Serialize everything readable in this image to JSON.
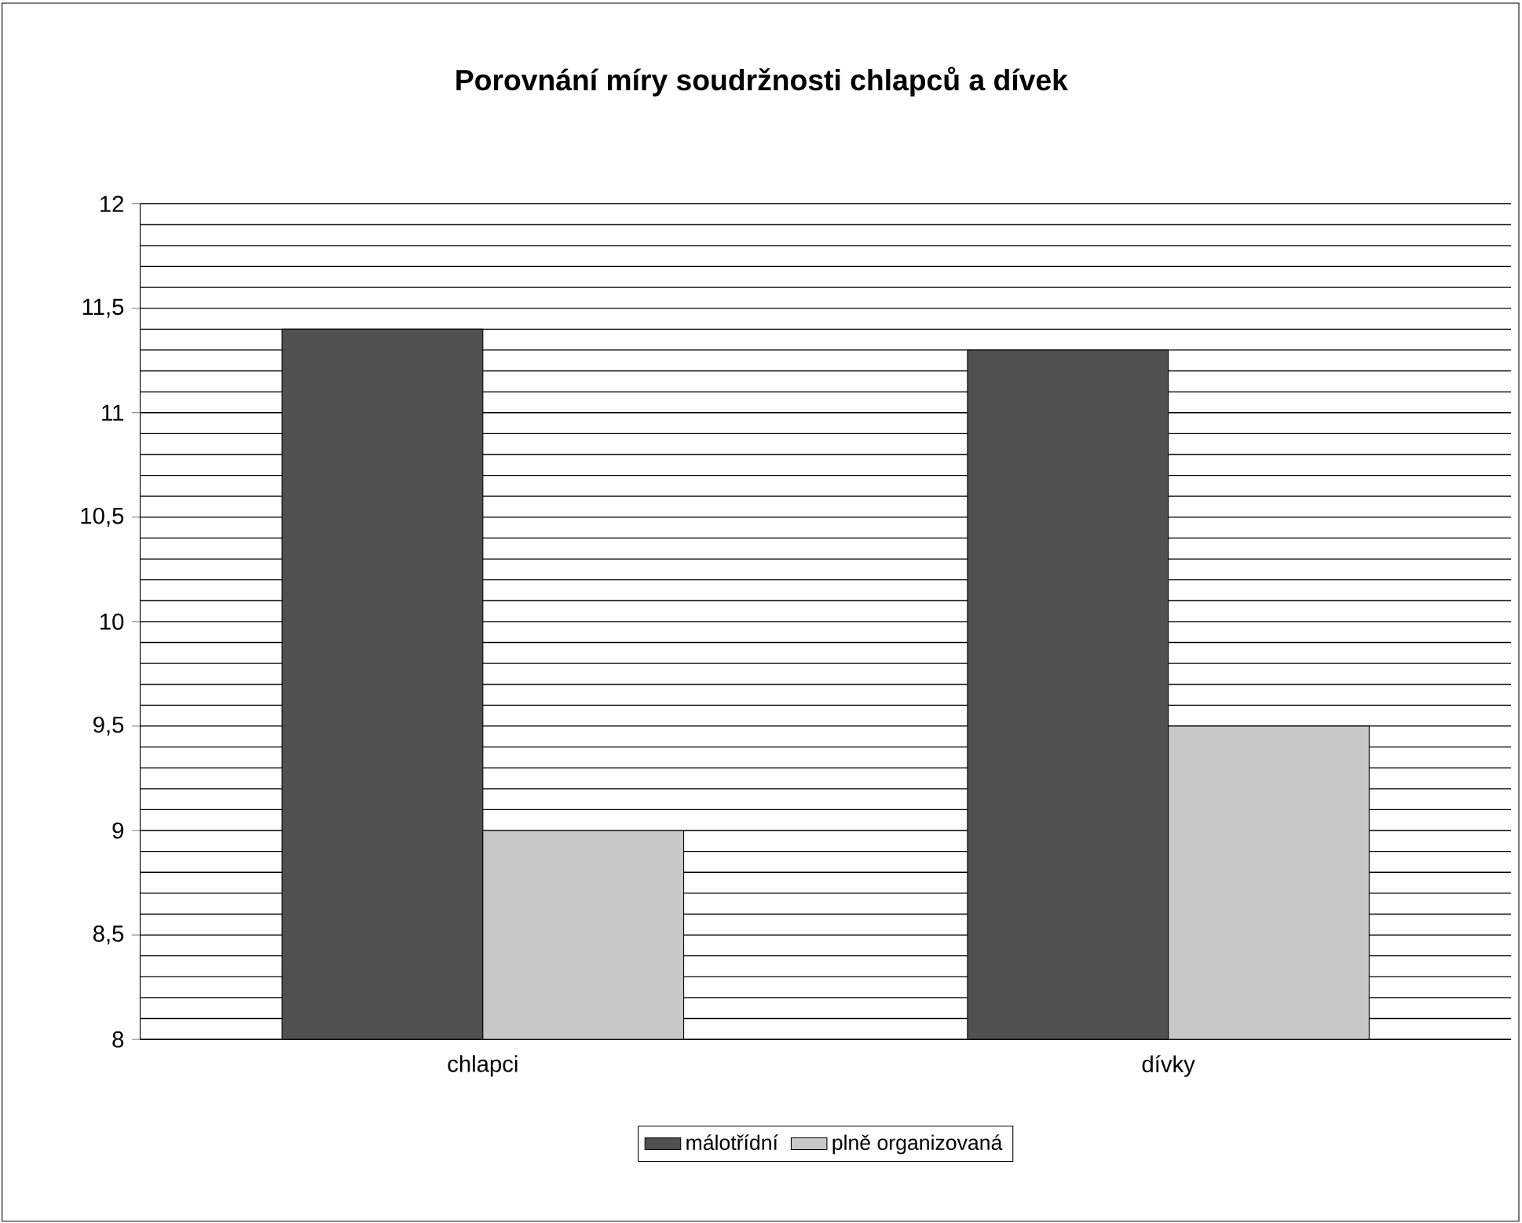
{
  "chart_data": {
    "type": "bar",
    "title": "Porovnání míry soudržnosti chlapců a dívek",
    "categories": [
      "chlapci",
      "dívky"
    ],
    "series": [
      {
        "name": "málotřídní",
        "color": "#505050",
        "values": [
          11.4,
          11.3
        ]
      },
      {
        "name": "plně organizovaná",
        "color": "#c8c8c8",
        "values": [
          9.0,
          9.5
        ]
      }
    ],
    "ylim": [
      8,
      12
    ],
    "yticks": [
      8,
      {
        "value": 8.5,
        "label": "8,5"
      },
      9,
      {
        "value": 9.5,
        "label": "9,5"
      },
      10,
      {
        "value": 10.5,
        "label": "10,5"
      },
      11,
      {
        "value": 11.5,
        "label": "11,5"
      },
      12
    ],
    "grid": "y",
    "legend": "bottom"
  }
}
